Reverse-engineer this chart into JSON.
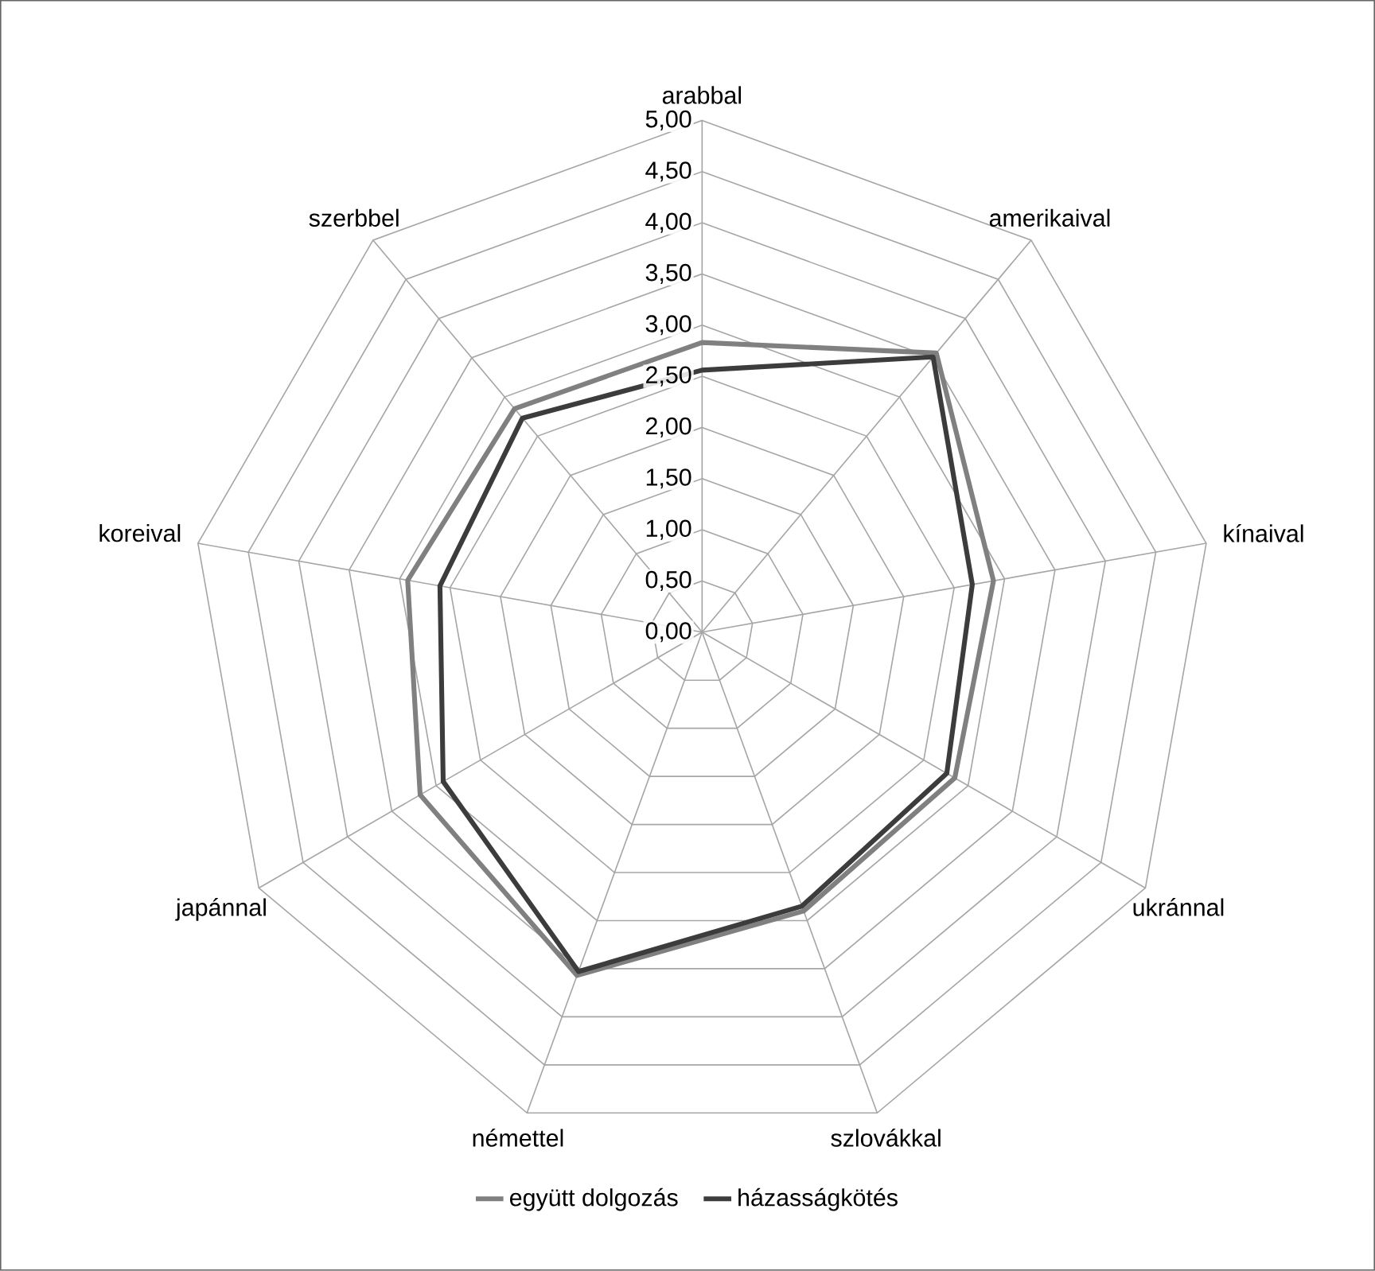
{
  "chart_data": {
    "type": "radar",
    "categories": [
      "arabbal",
      "amerikaival",
      "kínaival",
      "ukránnal",
      "szlovákkal",
      "némettel",
      "japánnal",
      "koreival",
      "szerbbel"
    ],
    "series": [
      {
        "name": "együtt dolgozás",
        "color": "#808080",
        "values": [
          2.83,
          3.56,
          2.89,
          2.85,
          2.9,
          3.57,
          3.18,
          2.92,
          2.85
        ]
      },
      {
        "name": "házasságkötés",
        "color": "#3c3c3c",
        "values": [
          2.56,
          3.51,
          2.68,
          2.76,
          2.85,
          3.53,
          2.92,
          2.6,
          2.73
        ]
      }
    ],
    "ylim": [
      0,
      5
    ],
    "yticks": [
      {
        "value": 0,
        "label": "0,00"
      },
      {
        "value": 0.5,
        "label": "0,50"
      },
      {
        "value": 1,
        "label": "1,00"
      },
      {
        "value": 1.5,
        "label": "1,50"
      },
      {
        "value": 2,
        "label": "2,00"
      },
      {
        "value": 2.5,
        "label": "2,50"
      },
      {
        "value": 3,
        "label": "3,00"
      },
      {
        "value": 3.5,
        "label": "3,50"
      },
      {
        "value": 4,
        "label": "4,00"
      },
      {
        "value": 4.5,
        "label": "4,50"
      },
      {
        "value": 5,
        "label": "5,00"
      }
    ],
    "grid": true,
    "legend": "bottom"
  }
}
